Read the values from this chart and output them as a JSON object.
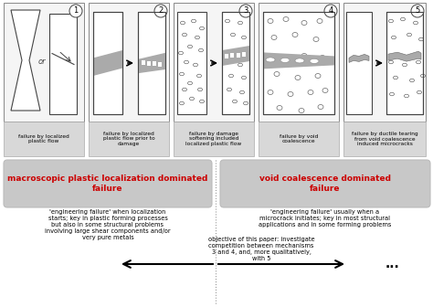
{
  "bg_color": "#ffffff",
  "red_text": "#cc0000",
  "scenario_labels": [
    "1",
    "2",
    "3",
    "4",
    "5"
  ],
  "captions": [
    "failure by localized\nplastic flow",
    "failure by localized\nplastic flow prior to\ndamage",
    "failure by damage\nsoftening included\nlocalized plastic flow",
    "failure by void\ncoalescence",
    "failure by ductile tearing\nfrom void coalescence\ninduced microcracks"
  ],
  "left_box_text": "macroscopic plastic localization dominated\nfailure",
  "right_box_text": "void coalescence dominated\nfailure",
  "left_desc": "'engineering failure' when localization\nstarts; key in plastic forming processes\nbut also in some structural problems\ninvolving large shear components and/or\nvery pure metals",
  "right_desc": "'engineering failure' usually when a\nmicrocrack initiates; key in most structural\napplications and in some forming problems",
  "arrow_text": "objective of this paper: investigate\ncompetition between mechanisms\n3 and 4, and, more qualitatively,\nwith 5",
  "dots_text": "..."
}
